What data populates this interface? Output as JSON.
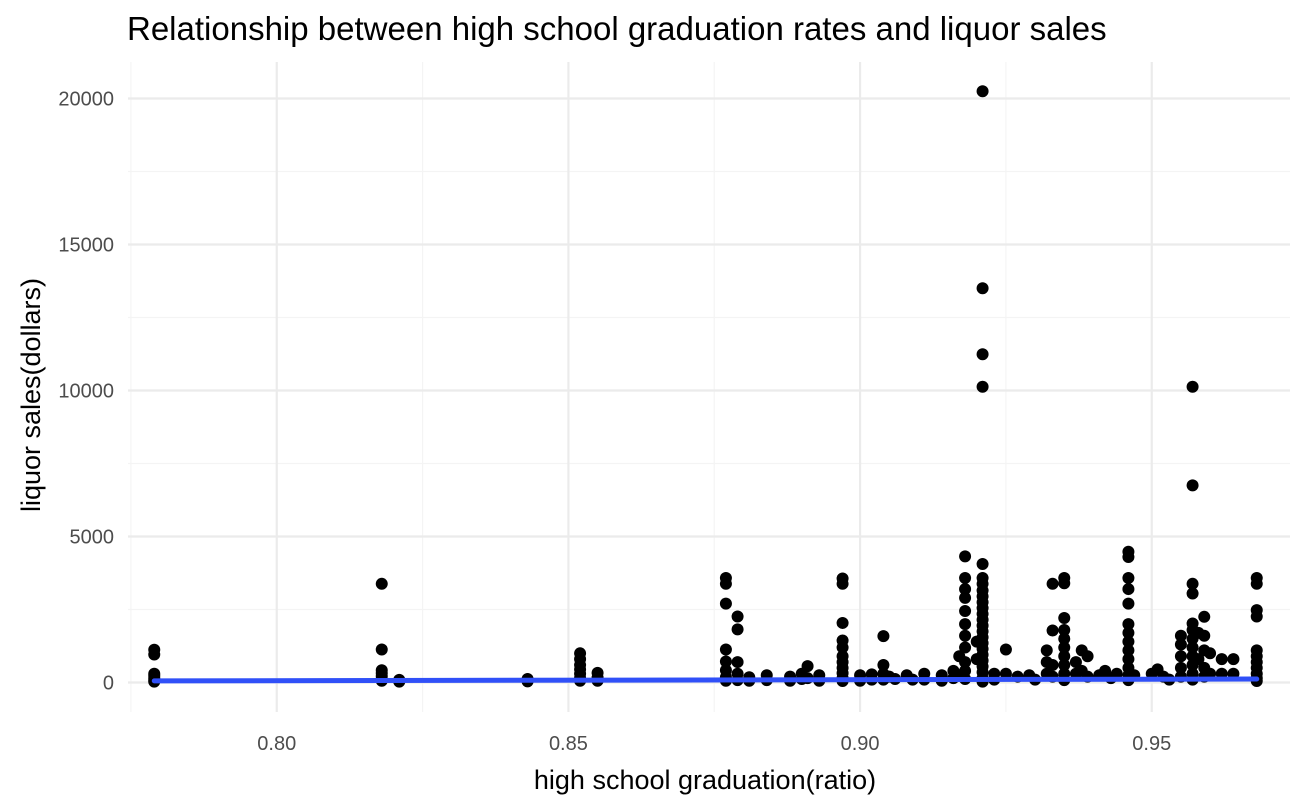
{
  "chart_data": {
    "type": "scatter",
    "title": "Relationship between high school graduation rates and liquor sales",
    "xlabel": "high school graduation(ratio)",
    "ylabel": "liquor sales(dollars)",
    "xlim": [
      0.7745,
      0.9737
    ],
    "ylim": [
      -1010,
      21250
    ],
    "x_ticks": [
      0.8,
      0.85,
      0.9,
      0.95
    ],
    "x_tick_labels": [
      "0.80",
      "0.85",
      "0.90",
      "0.95"
    ],
    "y_ticks": [
      0,
      5000,
      10000,
      15000,
      20000
    ],
    "y_tick_labels": [
      "0",
      "5000",
      "10000",
      "15000",
      "20000"
    ],
    "grid": true,
    "legend": "none",
    "point_color": "#000000",
    "trend_color": "#3050f8",
    "trend_line": {
      "method": "linear",
      "x": [
        0.779,
        0.968
      ],
      "y": [
        55,
        120
      ]
    },
    "series": [
      {
        "points": [
          [
            0.779,
            1120
          ],
          [
            0.779,
            960
          ],
          [
            0.779,
            300
          ],
          [
            0.779,
            230
          ],
          [
            0.779,
            150
          ],
          [
            0.779,
            80
          ],
          [
            0.779,
            30
          ],
          [
            0.818,
            3380
          ],
          [
            0.818,
            1130
          ],
          [
            0.818,
            420
          ],
          [
            0.818,
            320
          ],
          [
            0.818,
            220
          ],
          [
            0.818,
            120
          ],
          [
            0.818,
            60
          ],
          [
            0.821,
            90
          ],
          [
            0.821,
            30
          ],
          [
            0.843,
            120
          ],
          [
            0.843,
            40
          ],
          [
            0.852,
            1000
          ],
          [
            0.852,
            800
          ],
          [
            0.852,
            600
          ],
          [
            0.852,
            450
          ],
          [
            0.852,
            300
          ],
          [
            0.852,
            160
          ],
          [
            0.852,
            60
          ],
          [
            0.855,
            330
          ],
          [
            0.855,
            170
          ],
          [
            0.855,
            60
          ],
          [
            0.877,
            3580
          ],
          [
            0.877,
            3380
          ],
          [
            0.877,
            2700
          ],
          [
            0.877,
            1130
          ],
          [
            0.877,
            720
          ],
          [
            0.877,
            420
          ],
          [
            0.877,
            180
          ],
          [
            0.877,
            60
          ],
          [
            0.879,
            2260
          ],
          [
            0.879,
            1820
          ],
          [
            0.879,
            700
          ],
          [
            0.879,
            300
          ],
          [
            0.879,
            80
          ],
          [
            0.881,
            180
          ],
          [
            0.881,
            60
          ],
          [
            0.884,
            250
          ],
          [
            0.884,
            80
          ],
          [
            0.888,
            200
          ],
          [
            0.888,
            60
          ],
          [
            0.89,
            300
          ],
          [
            0.89,
            120
          ],
          [
            0.891,
            560
          ],
          [
            0.891,
            150
          ],
          [
            0.893,
            250
          ],
          [
            0.893,
            60
          ],
          [
            0.897,
            3560
          ],
          [
            0.897,
            3380
          ],
          [
            0.897,
            2040
          ],
          [
            0.897,
            1440
          ],
          [
            0.897,
            1200
          ],
          [
            0.897,
            900
          ],
          [
            0.897,
            700
          ],
          [
            0.897,
            500
          ],
          [
            0.897,
            320
          ],
          [
            0.897,
            150
          ],
          [
            0.897,
            50
          ],
          [
            0.9,
            250
          ],
          [
            0.9,
            60
          ],
          [
            0.902,
            280
          ],
          [
            0.902,
            100
          ],
          [
            0.904,
            1590
          ],
          [
            0.904,
            600
          ],
          [
            0.904,
            300
          ],
          [
            0.904,
            100
          ],
          [
            0.905,
            200
          ],
          [
            0.906,
            120
          ],
          [
            0.908,
            250
          ],
          [
            0.909,
            100
          ],
          [
            0.911,
            300
          ],
          [
            0.911,
            100
          ],
          [
            0.914,
            250
          ],
          [
            0.914,
            60
          ],
          [
            0.916,
            400
          ],
          [
            0.916,
            150
          ],
          [
            0.917,
            900
          ],
          [
            0.917,
            250
          ],
          [
            0.918,
            4320
          ],
          [
            0.918,
            3580
          ],
          [
            0.918,
            3200
          ],
          [
            0.918,
            2900
          ],
          [
            0.918,
            2450
          ],
          [
            0.918,
            2000
          ],
          [
            0.918,
            1600
          ],
          [
            0.918,
            1200
          ],
          [
            0.918,
            700
          ],
          [
            0.918,
            400
          ],
          [
            0.918,
            120
          ],
          [
            0.92,
            1400
          ],
          [
            0.92,
            800
          ],
          [
            0.921,
            20250
          ],
          [
            0.921,
            13500
          ],
          [
            0.921,
            11240
          ],
          [
            0.921,
            10130
          ],
          [
            0.921,
            4060
          ],
          [
            0.921,
            3580
          ],
          [
            0.921,
            3380
          ],
          [
            0.921,
            3150
          ],
          [
            0.921,
            2950
          ],
          [
            0.921,
            2750
          ],
          [
            0.921,
            2550
          ],
          [
            0.921,
            2350
          ],
          [
            0.921,
            2150
          ],
          [
            0.921,
            1950
          ],
          [
            0.921,
            1750
          ],
          [
            0.921,
            1550
          ],
          [
            0.921,
            1350
          ],
          [
            0.921,
            1150
          ],
          [
            0.921,
            950
          ],
          [
            0.921,
            750
          ],
          [
            0.921,
            550
          ],
          [
            0.921,
            350
          ],
          [
            0.921,
            150
          ],
          [
            0.921,
            30
          ],
          [
            0.923,
            300
          ],
          [
            0.923,
            100
          ],
          [
            0.925,
            1130
          ],
          [
            0.925,
            300
          ],
          [
            0.927,
            200
          ],
          [
            0.929,
            250
          ],
          [
            0.93,
            100
          ],
          [
            0.932,
            1100
          ],
          [
            0.932,
            700
          ],
          [
            0.932,
            300
          ],
          [
            0.933,
            3380
          ],
          [
            0.933,
            1780
          ],
          [
            0.933,
            600
          ],
          [
            0.933,
            200
          ],
          [
            0.935,
            3580
          ],
          [
            0.935,
            3400
          ],
          [
            0.935,
            2210
          ],
          [
            0.935,
            1800
          ],
          [
            0.935,
            1500
          ],
          [
            0.935,
            1200
          ],
          [
            0.935,
            900
          ],
          [
            0.935,
            600
          ],
          [
            0.935,
            300
          ],
          [
            0.935,
            80
          ],
          [
            0.937,
            700
          ],
          [
            0.937,
            300
          ],
          [
            0.938,
            1100
          ],
          [
            0.938,
            400
          ],
          [
            0.939,
            900
          ],
          [
            0.939,
            200
          ],
          [
            0.941,
            250
          ],
          [
            0.942,
            400
          ],
          [
            0.943,
            150
          ],
          [
            0.944,
            300
          ],
          [
            0.946,
            4480
          ],
          [
            0.946,
            4300
          ],
          [
            0.946,
            3580
          ],
          [
            0.946,
            3200
          ],
          [
            0.946,
            2700
          ],
          [
            0.946,
            2000
          ],
          [
            0.946,
            1700
          ],
          [
            0.946,
            1400
          ],
          [
            0.946,
            1100
          ],
          [
            0.946,
            800
          ],
          [
            0.946,
            500
          ],
          [
            0.946,
            250
          ],
          [
            0.946,
            80
          ],
          [
            0.947,
            250
          ],
          [
            0.95,
            300
          ],
          [
            0.951,
            450
          ],
          [
            0.952,
            200
          ],
          [
            0.953,
            100
          ],
          [
            0.955,
            1600
          ],
          [
            0.955,
            1300
          ],
          [
            0.955,
            900
          ],
          [
            0.955,
            500
          ],
          [
            0.955,
            200
          ],
          [
            0.957,
            10130
          ],
          [
            0.957,
            6750
          ],
          [
            0.957,
            3380
          ],
          [
            0.957,
            3050
          ],
          [
            0.957,
            2020
          ],
          [
            0.957,
            1800
          ],
          [
            0.957,
            1500
          ],
          [
            0.957,
            1200
          ],
          [
            0.957,
            900
          ],
          [
            0.957,
            600
          ],
          [
            0.957,
            300
          ],
          [
            0.957,
            100
          ],
          [
            0.958,
            1700
          ],
          [
            0.958,
            800
          ],
          [
            0.959,
            2250
          ],
          [
            0.959,
            1600
          ],
          [
            0.959,
            1100
          ],
          [
            0.959,
            500
          ],
          [
            0.959,
            200
          ],
          [
            0.96,
            1000
          ],
          [
            0.96,
            300
          ],
          [
            0.962,
            800
          ],
          [
            0.962,
            300
          ],
          [
            0.964,
            800
          ],
          [
            0.964,
            300
          ],
          [
            0.968,
            3580
          ],
          [
            0.968,
            3380
          ],
          [
            0.968,
            2480
          ],
          [
            0.968,
            2260
          ],
          [
            0.968,
            1100
          ],
          [
            0.968,
            900
          ],
          [
            0.968,
            700
          ],
          [
            0.968,
            500
          ],
          [
            0.968,
            300
          ],
          [
            0.968,
            150
          ],
          [
            0.968,
            50
          ]
        ]
      }
    ]
  }
}
